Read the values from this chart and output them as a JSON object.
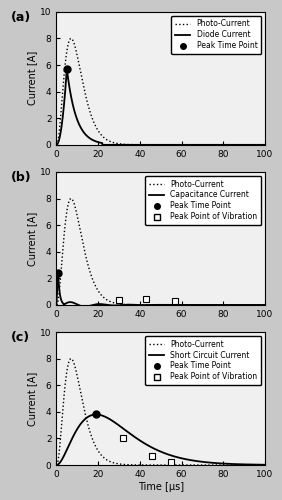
{
  "title_a": "(a)",
  "title_b": "(b)",
  "title_c": "(c)",
  "xlabel": "Time [μs]",
  "ylabel": "Current [A]",
  "xlim": [
    0,
    100
  ],
  "ylim": [
    0,
    10
  ],
  "yticks": [
    0,
    2,
    4,
    6,
    8,
    10
  ],
  "xticks": [
    0,
    20,
    40,
    60,
    80,
    100
  ],
  "photo_peak_t": 7.0,
  "photo_peak_A": 8.0,
  "photo_alpha": 2.5,
  "subplot_a": {
    "label": "Diode Current",
    "peak_t": 5.0,
    "peak_A": 5.7,
    "fall_tau": 4.5,
    "cutoff_t": 22.0
  },
  "subplot_b": {
    "label": "Capacitance Current",
    "peak_t": 0.8,
    "peak_A": 2.4,
    "fall_tau": 0.8,
    "cutoff_t": 3.5,
    "osc_period": 14,
    "osc_amp": 0.28,
    "osc_decay": 12,
    "vib_points": [
      [
        30,
        0.38
      ],
      [
        43,
        0.42
      ],
      [
        57,
        0.32
      ]
    ],
    "peak_dot": [
      0.8,
      2.4
    ]
  },
  "subplot_c": {
    "label": "Short Circuit Current",
    "peak_t": 19.0,
    "peak_A": 3.8,
    "alpha": 2.0,
    "vib_points": [
      [
        32,
        2.0
      ],
      [
        46,
        0.65
      ],
      [
        55,
        0.22
      ]
    ],
    "peak_dot": [
      19,
      3.8
    ]
  },
  "bg_color": "#c8c8c8",
  "axes_bg": "#f0f0f0",
  "line_color": "#000000"
}
